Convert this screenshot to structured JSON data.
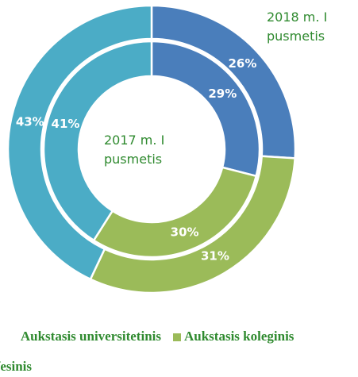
{
  "chart_data": {
    "type": "donut",
    "categories": [
      "Aukstasis universitetinis",
      "Aukstasis koleginis",
      "Profesinis"
    ],
    "colors": [
      "#4a7ebb",
      "#9bbb59",
      "#4bacc6"
    ],
    "series": [
      {
        "name": "2018 m. I pusmetis",
        "values": [
          26,
          31,
          43
        ],
        "value_labels": [
          "26%",
          "31%",
          "43%"
        ]
      },
      {
        "name": "2017 m. I pusmetis",
        "values": [
          29,
          30,
          41
        ],
        "value_labels": [
          "29%",
          "30%",
          "41%"
        ]
      }
    ]
  }
}
